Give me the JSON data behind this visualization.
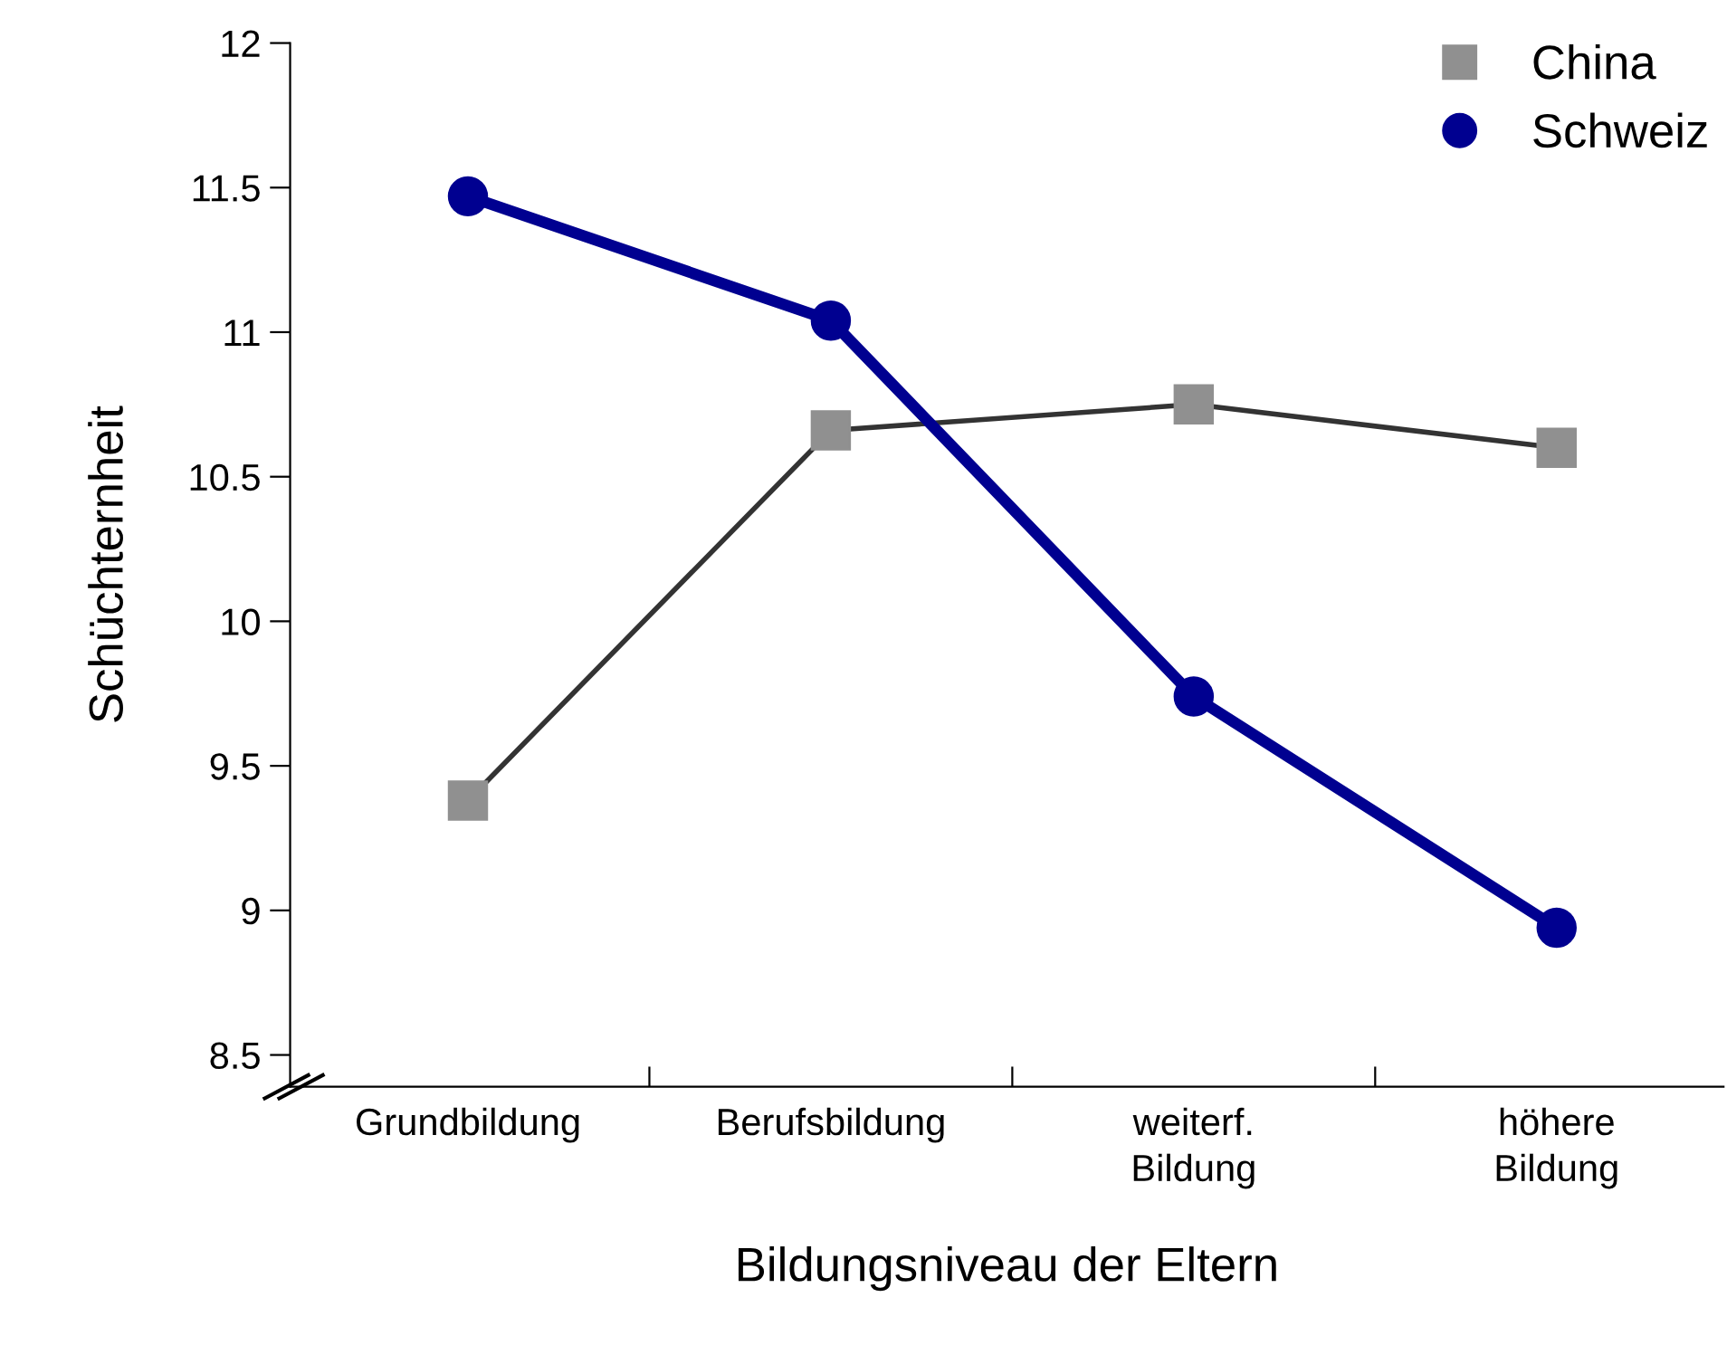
{
  "chart_data": {
    "type": "line",
    "xlabel": "Bildungsniveau der Eltern",
    "ylabel": "Schüchternheit",
    "categories": [
      "Grundbildung",
      "Berufsbildung",
      "weiterf.\nBildung",
      "höhere\nBildung"
    ],
    "series": [
      {
        "name": "China",
        "color": "#909090",
        "values": [
          9.38,
          10.66,
          10.75,
          10.6
        ],
        "marker": "square"
      },
      {
        "name": "Schweiz",
        "color": "#000090",
        "values": [
          11.47,
          11.04,
          9.74,
          8.94
        ],
        "marker": "circle"
      }
    ],
    "ylim": [
      8.39,
      12
    ],
    "yticks": [
      8.5,
      9,
      9.5,
      10,
      10.5,
      11,
      11.5,
      12
    ],
    "grid": false,
    "legend": "top right"
  }
}
